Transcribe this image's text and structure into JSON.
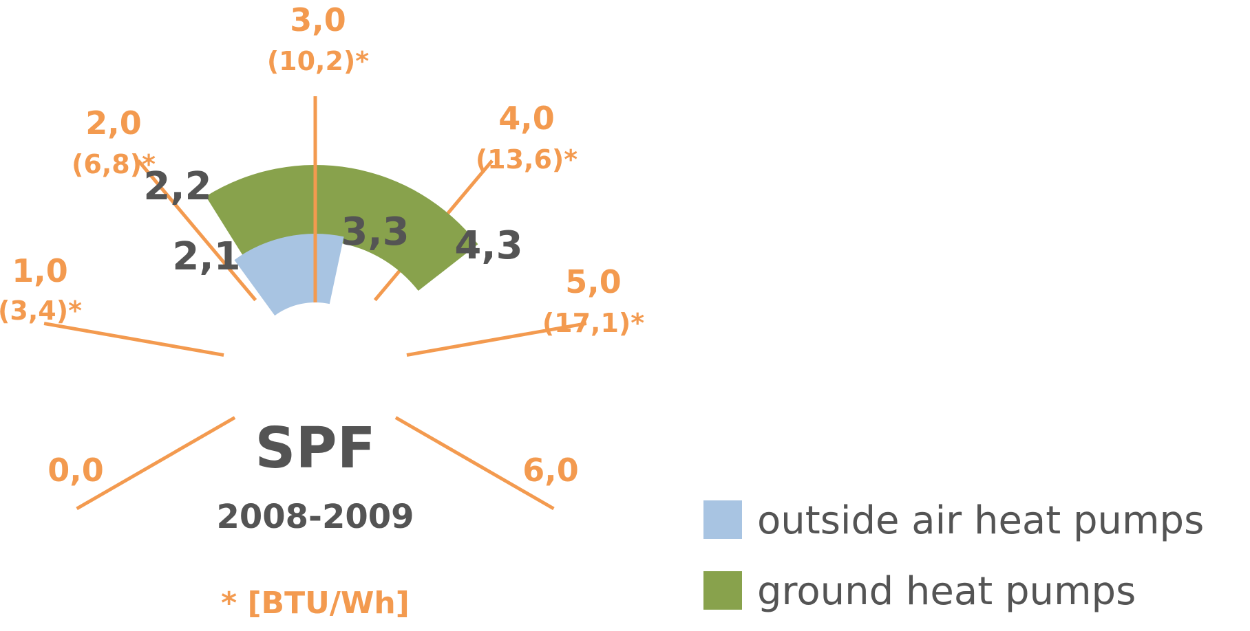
{
  "chart_data": {
    "type": "gauge",
    "title": "SPF",
    "subtitle": "2008-2009",
    "unit_note": "* [BTU/Wh]",
    "scale": {
      "min": 0,
      "max": 6,
      "ticks": [
        {
          "value": 0,
          "label": "0,0",
          "secondary": ""
        },
        {
          "value": 1,
          "label": "1,0",
          "secondary": "(3,4)*"
        },
        {
          "value": 2,
          "label": "2,0",
          "secondary": "(6,8)*"
        },
        {
          "value": 3,
          "label": "3,0",
          "secondary": "(10,2)*"
        },
        {
          "value": 4,
          "label": "4,0",
          "secondary": "(13,6)*"
        },
        {
          "value": 5,
          "label": "5,0",
          "secondary": "(17,1)*"
        },
        {
          "value": 6,
          "label": "6,0",
          "secondary": ""
        }
      ]
    },
    "series": [
      {
        "name": "outside air heat pumps",
        "color": "#a8c4e2",
        "from": 2.1,
        "to": 3.3,
        "from_label": "2,1",
        "to_label": "3,3"
      },
      {
        "name": "ground heat pumps",
        "color": "#88a24c",
        "from": 2.2,
        "to": 4.3,
        "from_label": "2,2",
        "to_label": "4,3"
      }
    ],
    "legend_position": "bottom-right",
    "tick_color": "#f39a4f",
    "text_color": "#545454"
  }
}
